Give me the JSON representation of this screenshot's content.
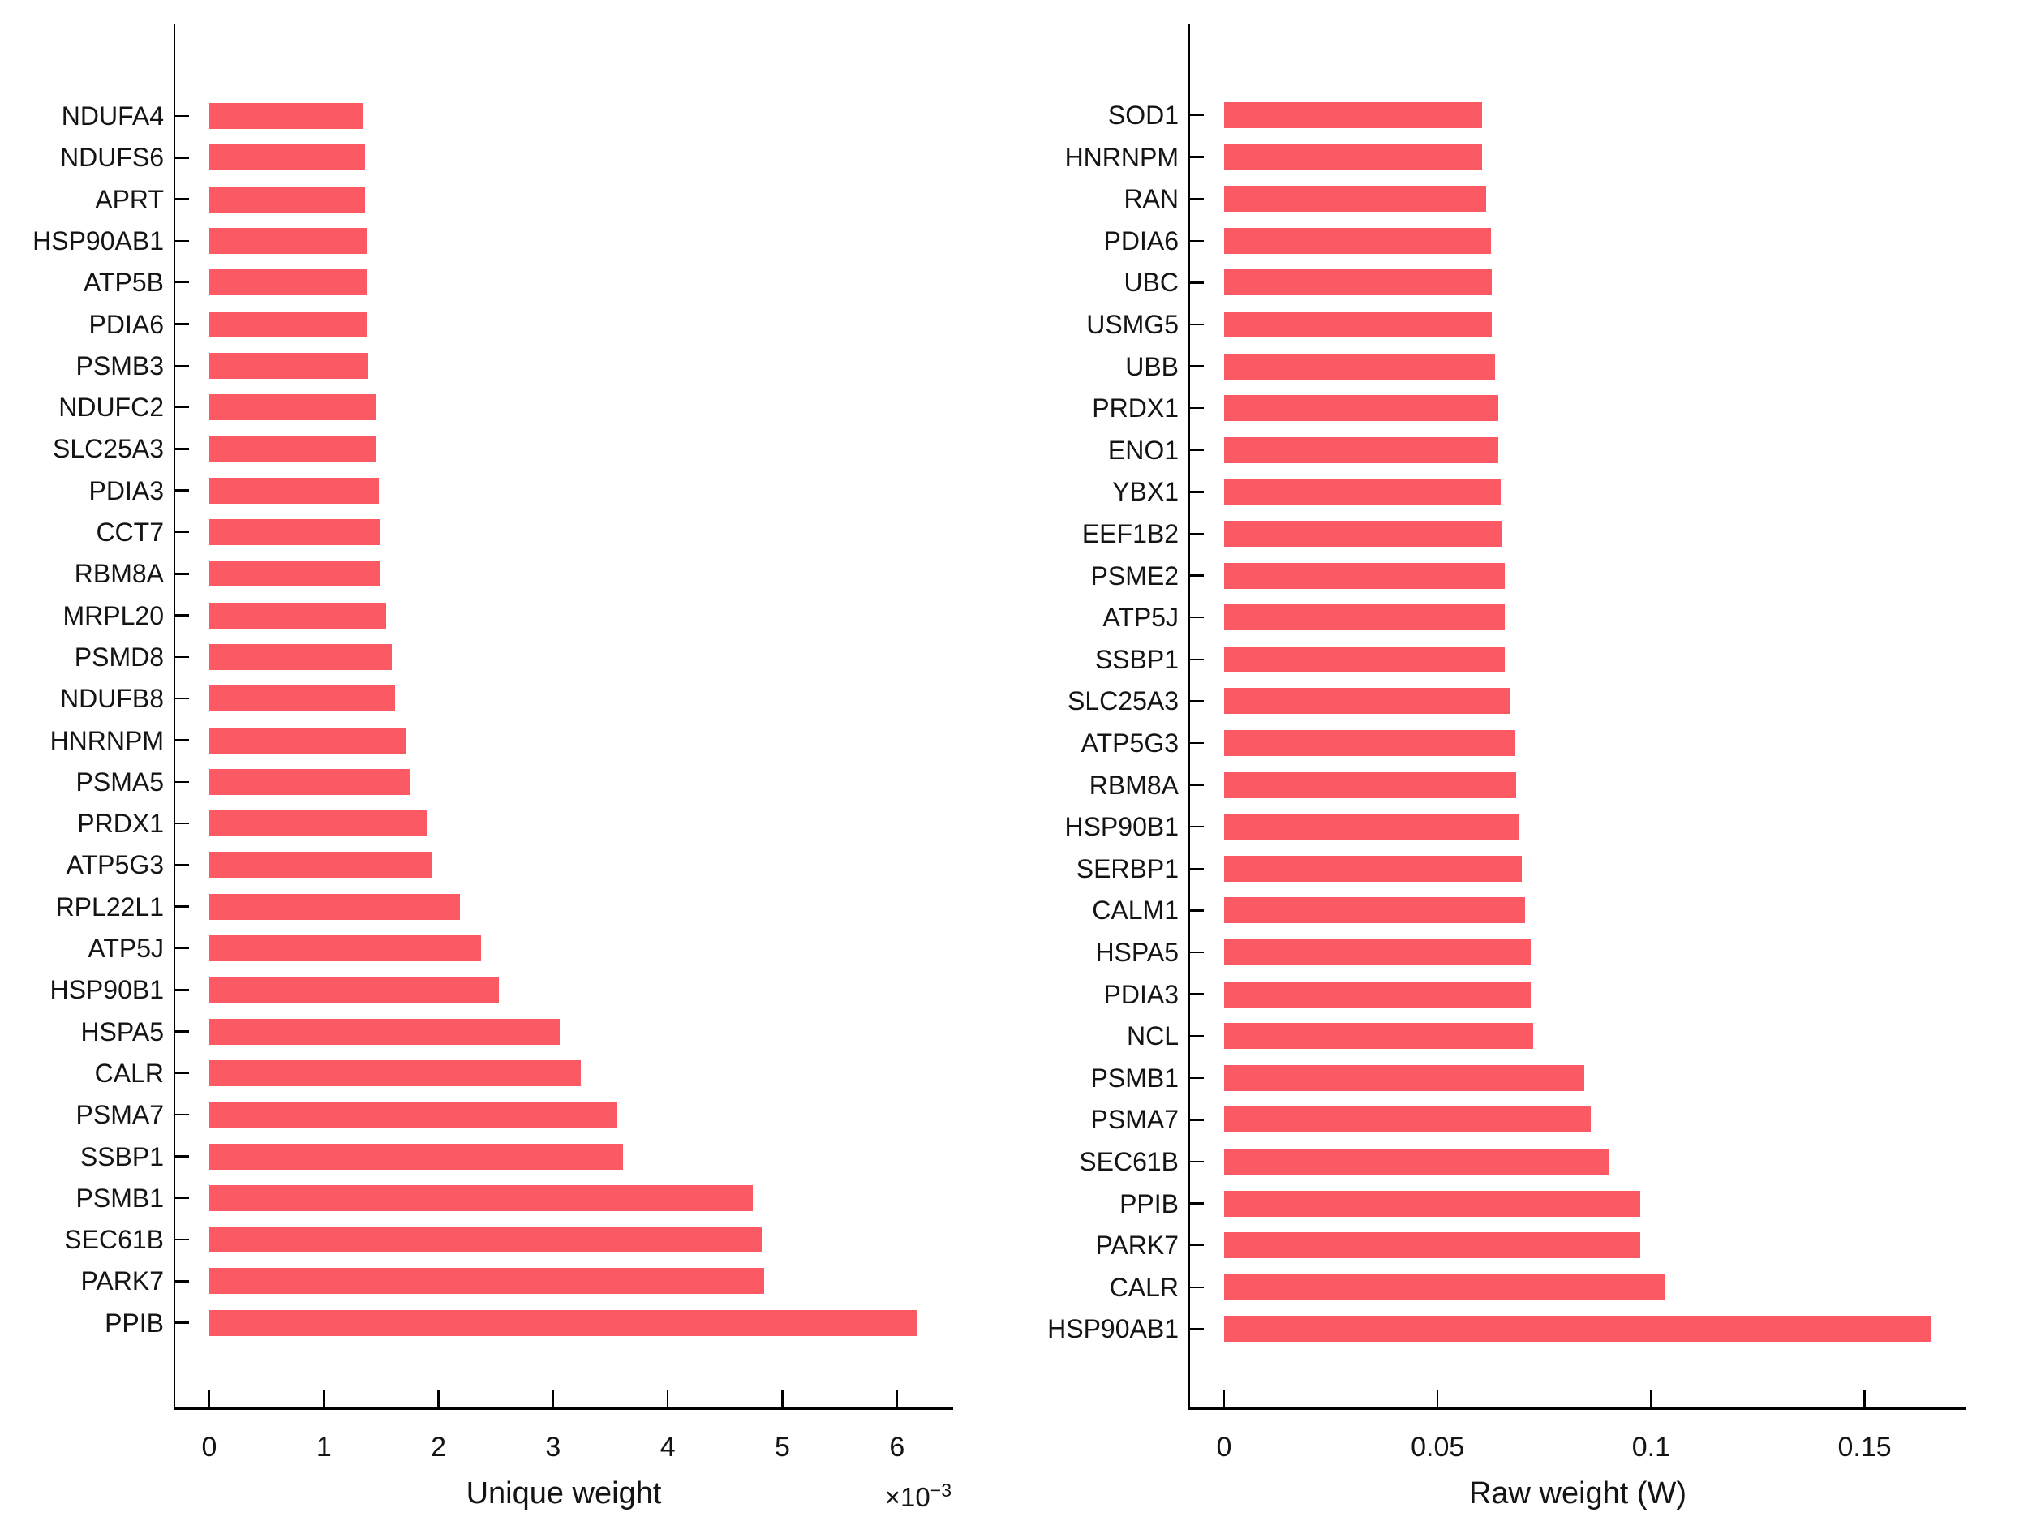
{
  "figure": {
    "background_color": "#ffffff",
    "bar_color": "#FB5A64",
    "axis_color": "#000000",
    "text_color": "#141414"
  },
  "chart_data": [
    {
      "type": "bar",
      "orientation": "horizontal",
      "title": "",
      "xlabel": "Unique weight",
      "offset_text": "×10",
      "offset_exponent": "−3",
      "value_scale_note": "values are in units of 10^-3",
      "xtick_labels": [
        "0",
        "1",
        "2",
        "3",
        "4",
        "5",
        "6"
      ],
      "xtick_values": [
        0,
        1,
        2,
        3,
        4,
        5,
        6
      ],
      "xlim": [
        -0.3,
        6.49
      ],
      "grid": false,
      "legend": "none",
      "categories": [
        "NDUFA4",
        "NDUFS6",
        "APRT",
        "HSP90AB1",
        "ATP5B",
        "PDIA6",
        "PSMB3",
        "NDUFC2",
        "SLC25A3",
        "PDIA3",
        "CCT7",
        "RBM8A",
        "MRPL20",
        "PSMD8",
        "NDUFB8",
        "HNRNPM",
        "PSMA5",
        "PRDX1",
        "ATP5G3",
        "RPL22L1",
        "ATP5J",
        "HSP90B1",
        "HSPA5",
        "CALR",
        "PSMA7",
        "SSBP1",
        "PSMB1",
        "SEC61B",
        "PARK7",
        "PPIB"
      ],
      "values": [
        1.34,
        1.36,
        1.36,
        1.37,
        1.38,
        1.38,
        1.39,
        1.46,
        1.46,
        1.48,
        1.49,
        1.49,
        1.54,
        1.59,
        1.62,
        1.71,
        1.75,
        1.9,
        1.94,
        2.19,
        2.37,
        2.53,
        3.06,
        3.24,
        3.55,
        3.61,
        4.74,
        4.82,
        4.84,
        6.18
      ]
    },
    {
      "type": "bar",
      "orientation": "horizontal",
      "title": "",
      "xlabel": "Raw weight (W)",
      "offset_text": "",
      "offset_exponent": "",
      "xtick_labels": [
        "0",
        "0.05",
        "0.1",
        "0.15"
      ],
      "xtick_values": [
        0,
        0.05,
        0.1,
        0.15
      ],
      "xlim": [
        -0.008,
        0.174
      ],
      "grid": false,
      "legend": "none",
      "categories": [
        "SOD1",
        "HNRNPM",
        "RAN",
        "PDIA6",
        "UBC",
        "USMG5",
        "UBB",
        "PRDX1",
        "ENO1",
        "YBX1",
        "EEF1B2",
        "PSME2",
        "ATP5J",
        "SSBP1",
        "SLC25A3",
        "ATP5G3",
        "RBM8A",
        "HSP90B1",
        "SERBP1",
        "CALM1",
        "HSPA5",
        "PDIA3",
        "NCL",
        "PSMB1",
        "PSMA7",
        "SEC61B",
        "PPIB",
        "PARK7",
        "CALR",
        "HSP90AB1"
      ],
      "values": [
        0.0604,
        0.0604,
        0.0613,
        0.0625,
        0.0626,
        0.0627,
        0.0635,
        0.0642,
        0.0643,
        0.0648,
        0.0652,
        0.0657,
        0.0658,
        0.0658,
        0.0669,
        0.0682,
        0.0683,
        0.0692,
        0.0698,
        0.0705,
        0.0718,
        0.0718,
        0.0724,
        0.0844,
        0.0859,
        0.09,
        0.0974,
        0.0974,
        0.1033,
        0.1657
      ]
    }
  ]
}
